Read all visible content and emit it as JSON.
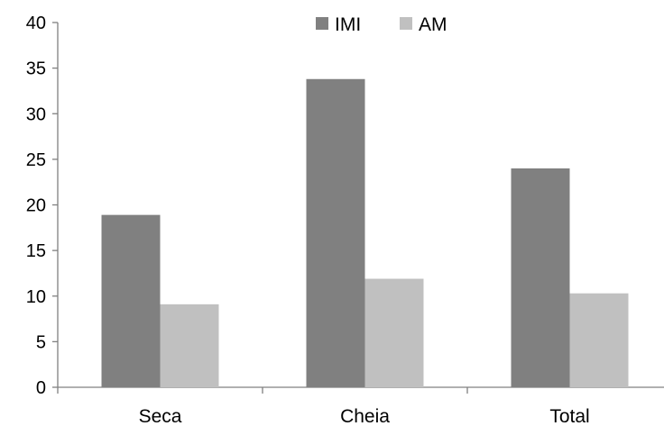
{
  "chart_data": {
    "type": "bar",
    "categories": [
      "Seca",
      "Cheia",
      "Total"
    ],
    "series": [
      {
        "name": "IMI",
        "values": [
          18.9,
          33.8,
          24.0
        ]
      },
      {
        "name": "AM",
        "values": [
          9.1,
          11.9,
          10.3
        ]
      }
    ],
    "ylim": [
      0,
      40
    ],
    "yticks": [
      0,
      5,
      10,
      15,
      20,
      25,
      30,
      35,
      40
    ],
    "grid": false,
    "legend": "top",
    "colors": {
      "IMI": "#808080",
      "AM": "#c0c0c0"
    }
  }
}
